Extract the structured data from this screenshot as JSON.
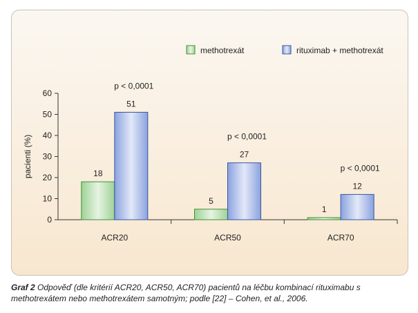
{
  "chart_data": {
    "type": "bar",
    "categories": [
      "ACR20",
      "ACR50",
      "ACR70"
    ],
    "series": [
      {
        "name": "methotrexát",
        "values": [
          18,
          5,
          1
        ],
        "color": "#c8e6c2"
      },
      {
        "name": "rituximab + methotrexát",
        "values": [
          51,
          27,
          12
        ],
        "color": "#aebfe6"
      }
    ],
    "annotations": [
      "p < 0,0001",
      "p < 0,0001",
      "p < 0,0001"
    ],
    "yticks": [
      "0",
      "10",
      "20",
      "30",
      "40",
      "50",
      "60"
    ],
    "ylabel": "pacienti (%)",
    "ylim": [
      0,
      60
    ],
    "legend_position": "top-right",
    "grid": false
  },
  "caption": {
    "label": "Graf 2",
    "text": "Odpověď (dle kritérií ACR20, ACR50, ACR70) pacientů na léčbu kombinací rituximabu s methotrexátem nebo methotrexátem samotným; podle [22] – Cohen, et al., 2006."
  }
}
